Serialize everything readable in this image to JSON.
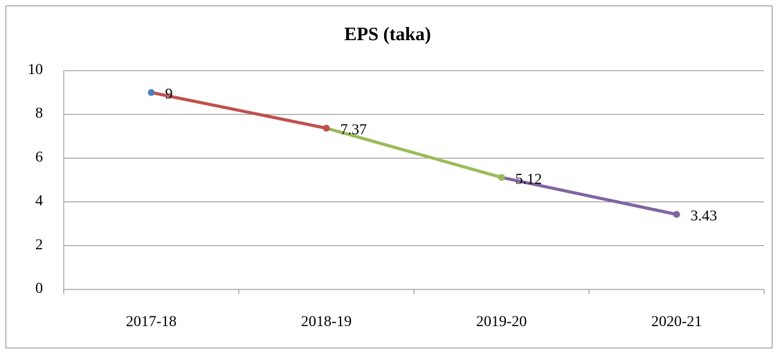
{
  "chart_data": {
    "type": "line",
    "title": "EPS (taka)",
    "categories": [
      "2017-18",
      "2018-19",
      "2019-20",
      "2020-21"
    ],
    "values": [
      9,
      7.37,
      5.12,
      3.43
    ],
    "point_colors": [
      "#4f81bd",
      "#c0504d",
      "#9bbb59",
      "#8064a2"
    ],
    "ylim": [
      0,
      10
    ],
    "yticks": [
      0,
      2,
      4,
      6,
      8,
      10
    ],
    "grid": true
  }
}
